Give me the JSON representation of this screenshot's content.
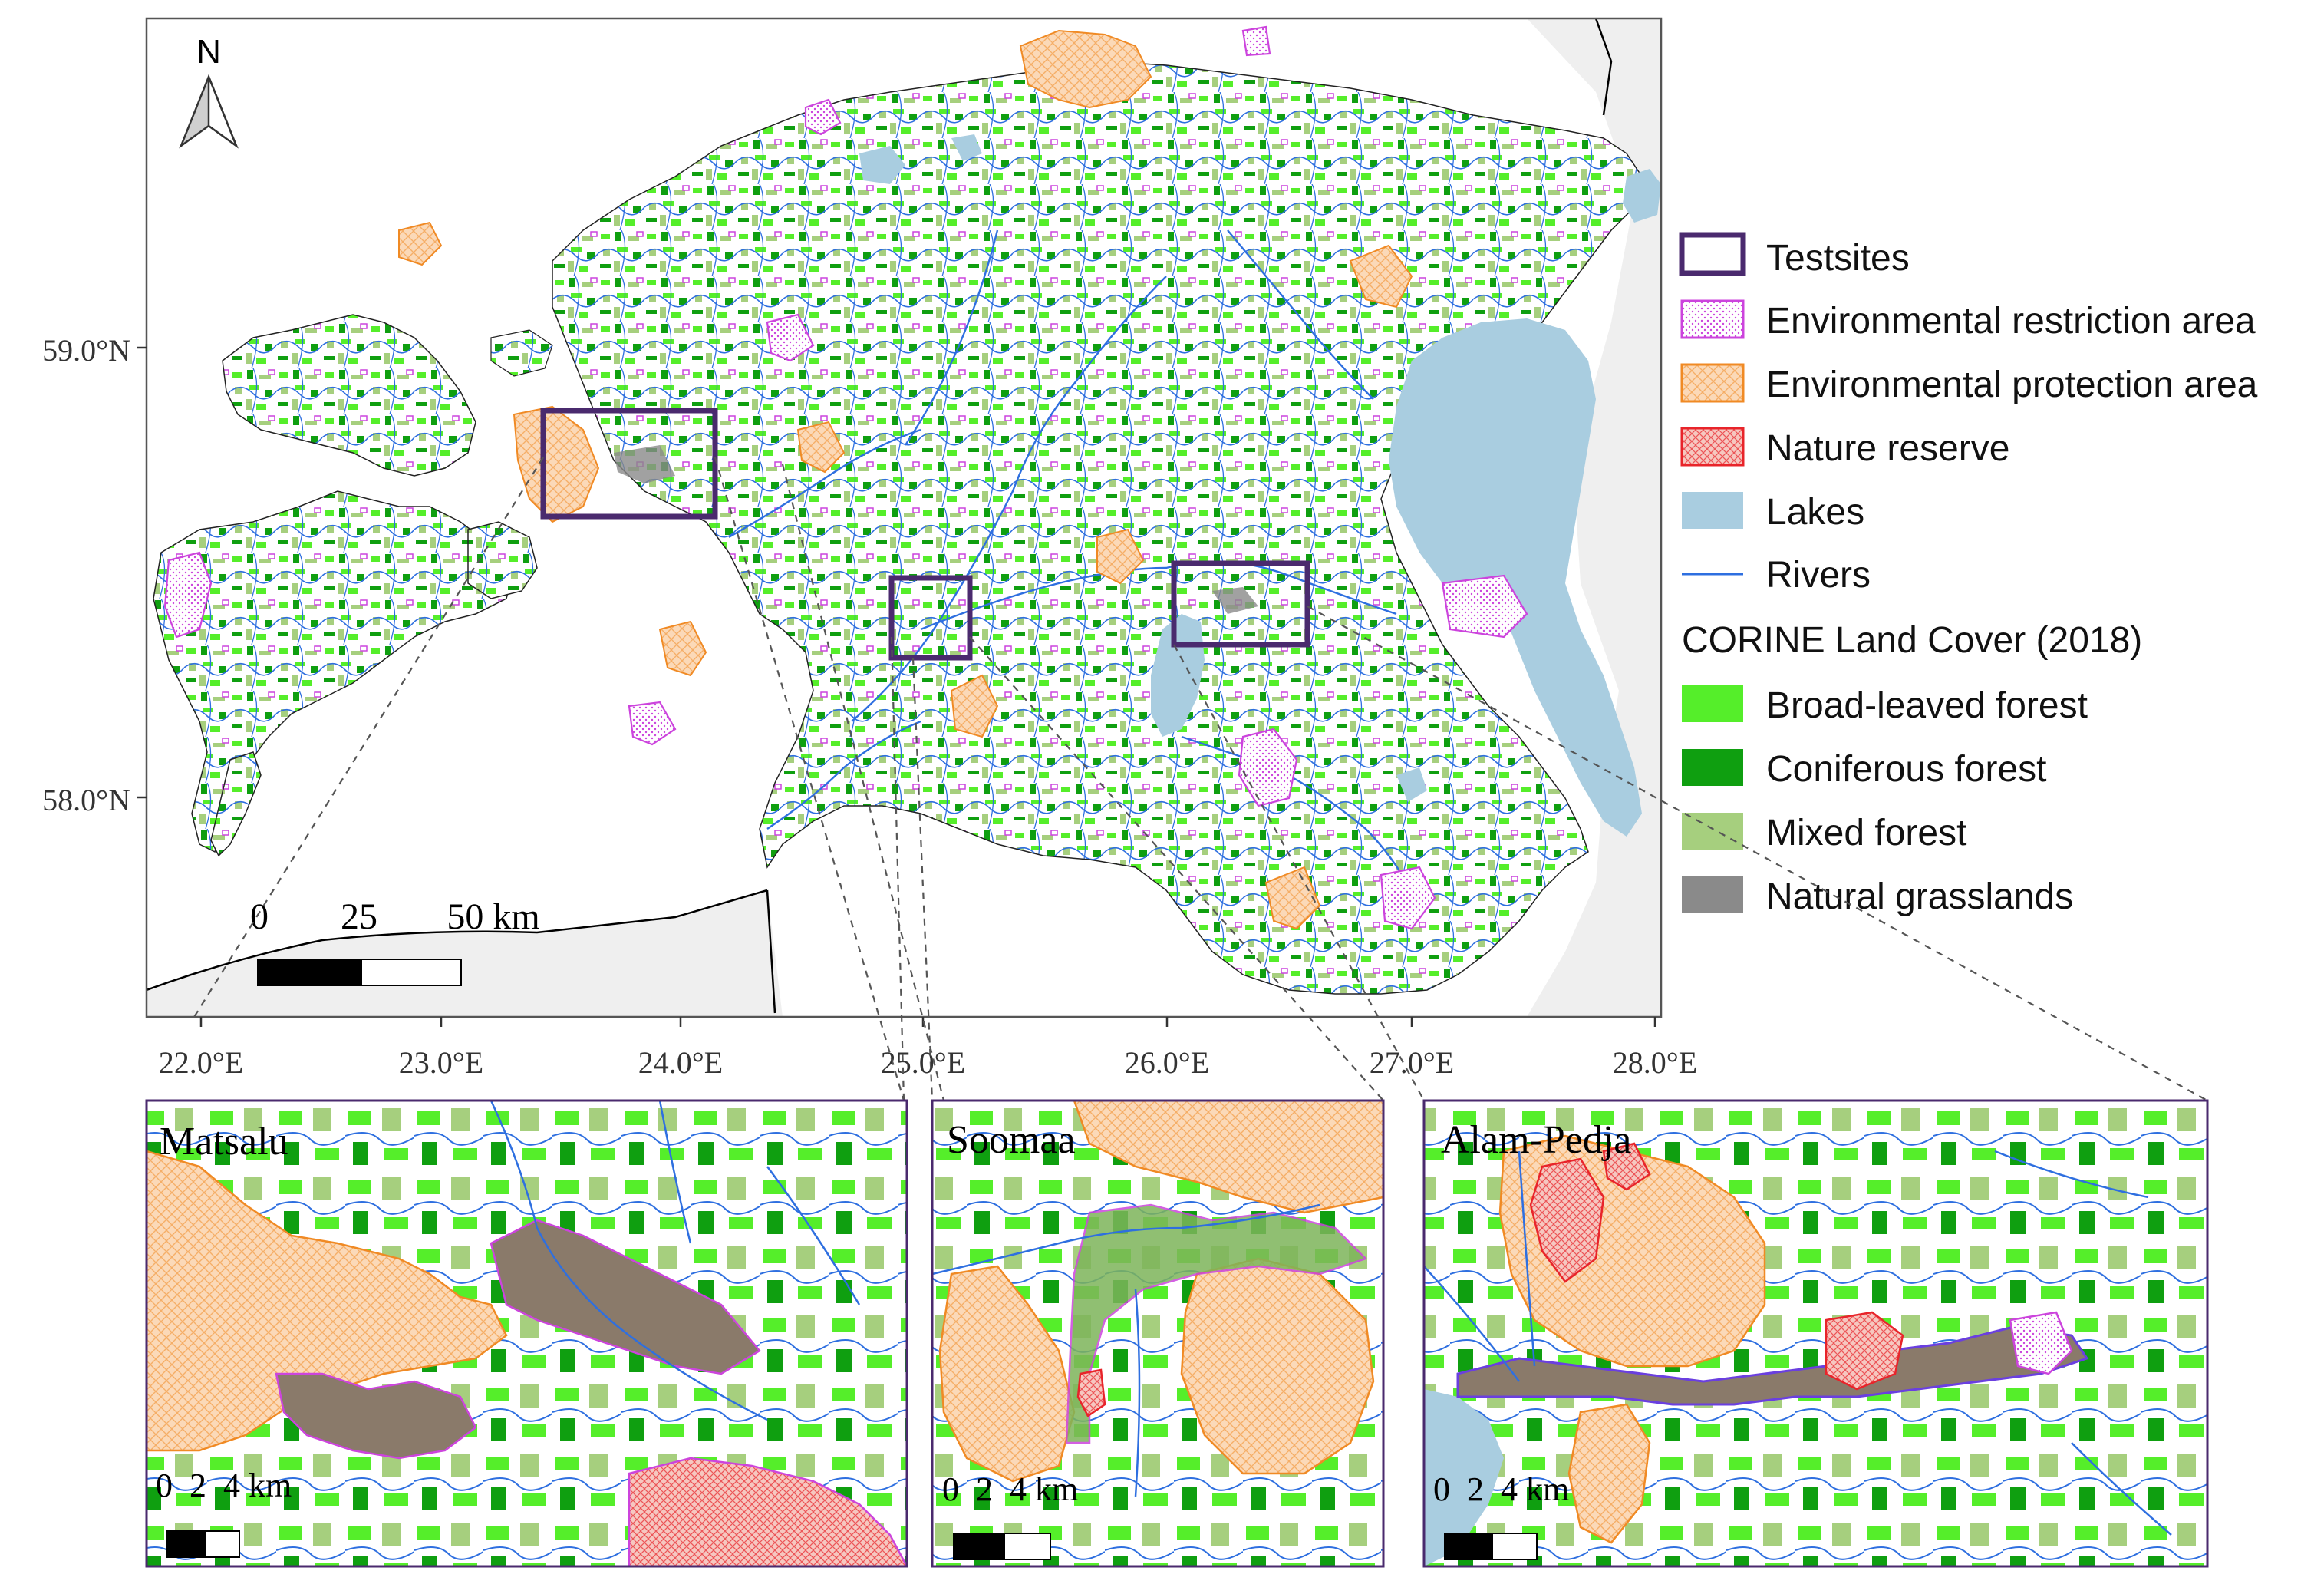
{
  "north_arrow": {
    "label": "N"
  },
  "latitude_labels": [
    "59.0°N",
    "58.0°N"
  ],
  "longitude_labels": [
    "22.0°E",
    "23.0°E",
    "24.0°E",
    "25.0°E",
    "26.0°E",
    "27.0°E",
    "28.0°E"
  ],
  "main_scalebar": {
    "ticks": [
      "0",
      "25",
      "50 km"
    ]
  },
  "legend": {
    "items": [
      {
        "label": "Testsites",
        "symbol": "testsite"
      },
      {
        "label": "Environmental restriction area",
        "symbol": "restriction"
      },
      {
        "label": "Environmental protection area",
        "symbol": "protection"
      },
      {
        "label": "Nature reserve",
        "symbol": "reserve"
      },
      {
        "label": "Lakes",
        "symbol": "lake"
      },
      {
        "label": "Rivers",
        "symbol": "river"
      }
    ],
    "clc_title": "CORINE Land Cover (2018)",
    "clc_items": [
      {
        "label": "Broad-leaved forest",
        "color": "#55ee2a"
      },
      {
        "label": "Coniferous forest",
        "color": "#0f9f10"
      },
      {
        "label": "Mixed forest",
        "color": "#a6cf7e"
      },
      {
        "label": "Natural grasslands",
        "color": "#8a8a8a"
      }
    ]
  },
  "insets": [
    {
      "name": "Matsalu",
      "scalebar": "0  2  4 km"
    },
    {
      "name": "Soomaa",
      "scalebar": "0  2  4 km"
    },
    {
      "name": "Alam-Pedja",
      "scalebar": "0  2  4 km"
    }
  ],
  "colors": {
    "testsite": "#4a2a6e",
    "restriction": "#cc44dd",
    "protection": "#f08a24",
    "protection_fill": "#fbd9b8",
    "reserve": "#e8242a",
    "lake": "#a9cde0",
    "river": "#2e6fe0",
    "land": "#ffffff",
    "neighbour": "#efefef"
  }
}
